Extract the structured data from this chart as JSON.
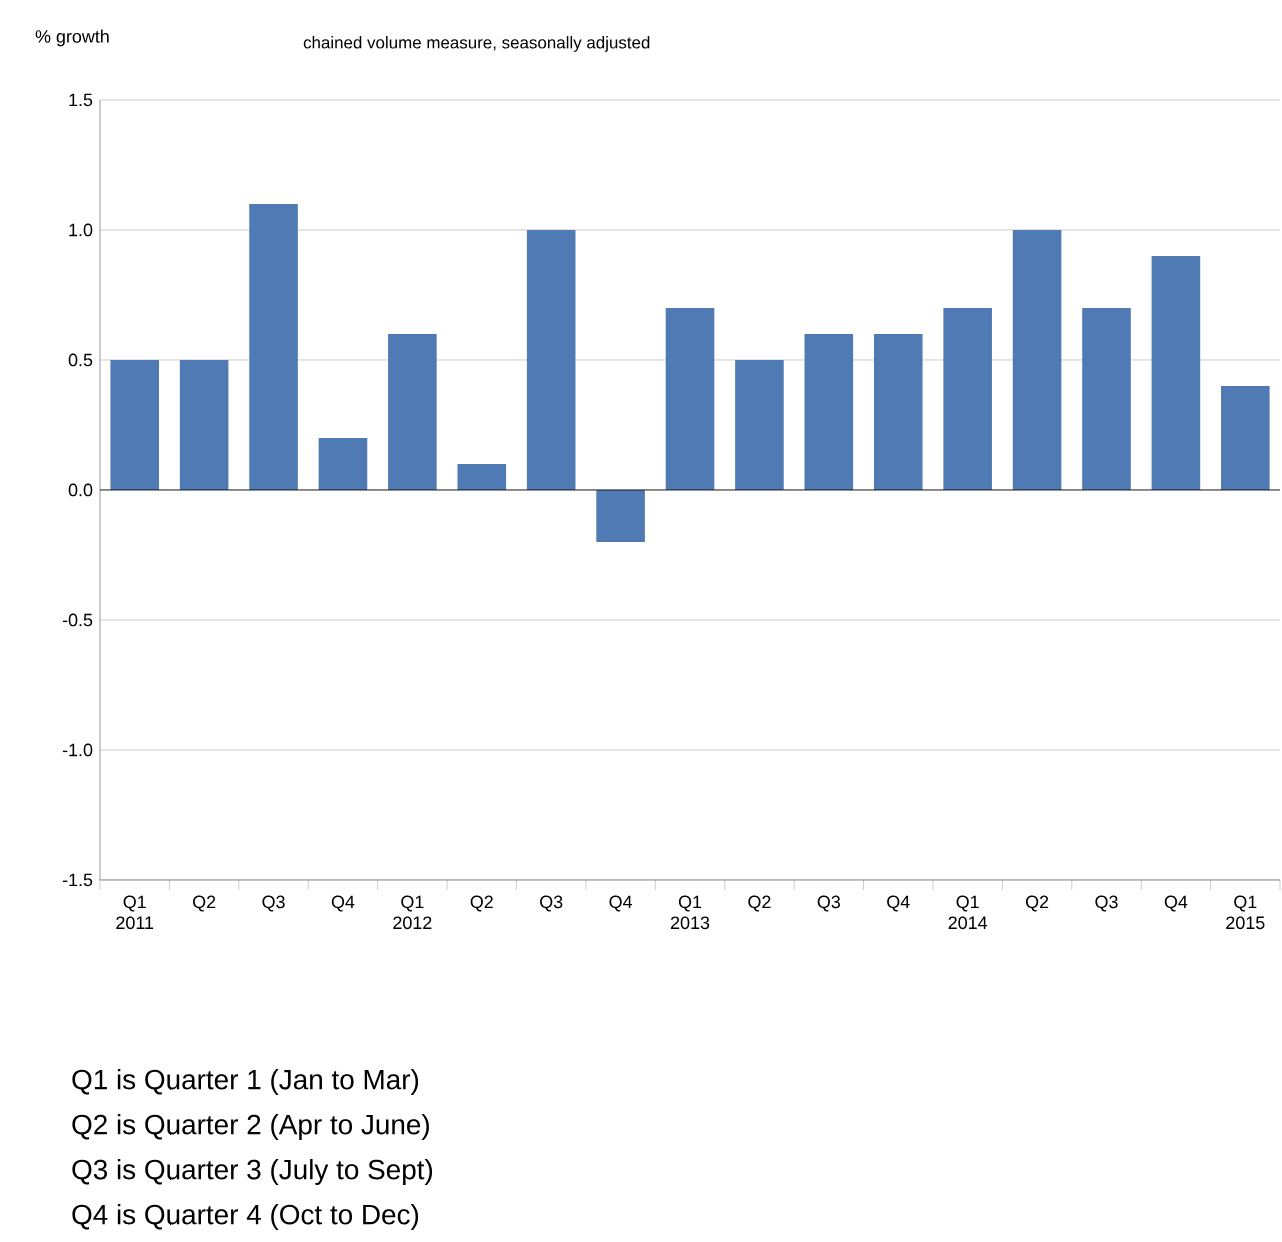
{
  "chart_data": {
    "type": "bar",
    "subtitle": "chained volume measure, seasonally adjusted",
    "ylabel": "% growth",
    "categories": [
      "Q1 2011",
      "Q2",
      "Q3",
      "Q4",
      "Q1 2012",
      "Q2",
      "Q3",
      "Q4",
      "Q1 2013",
      "Q2",
      "Q3",
      "Q4",
      "Q1 2014",
      "Q2",
      "Q3",
      "Q4",
      "Q1 2015"
    ],
    "values": [
      0.5,
      0.5,
      1.1,
      0.2,
      0.6,
      0.1,
      1.0,
      -0.2,
      0.7,
      0.5,
      0.6,
      0.6,
      0.7,
      1.0,
      0.7,
      0.9,
      0.4
    ],
    "color": "#4f7ab3",
    "ylim": [
      -1.5,
      1.5
    ],
    "yticks": [
      {
        "value": -1.5,
        "label": "-1.5"
      },
      {
        "value": -1,
        "label": "-1.0"
      },
      {
        "value": -0.5,
        "label": "-0.5"
      },
      {
        "value": 0,
        "label": "0.0"
      },
      {
        "value": 0.5,
        "label": "0.5"
      },
      {
        "value": 1,
        "label": "1.0"
      },
      {
        "value": 1.5,
        "label": "1.5"
      }
    ],
    "grid": "y",
    "annotations": [
      "Q1 is Quarter 1 (Jan to Mar)",
      "Q2 is Quarter 2 (Apr to June)",
      "Q3 is Quarter 3 (July to Sept)",
      "Q4 is Quarter 4 (Oct to Dec)"
    ]
  }
}
